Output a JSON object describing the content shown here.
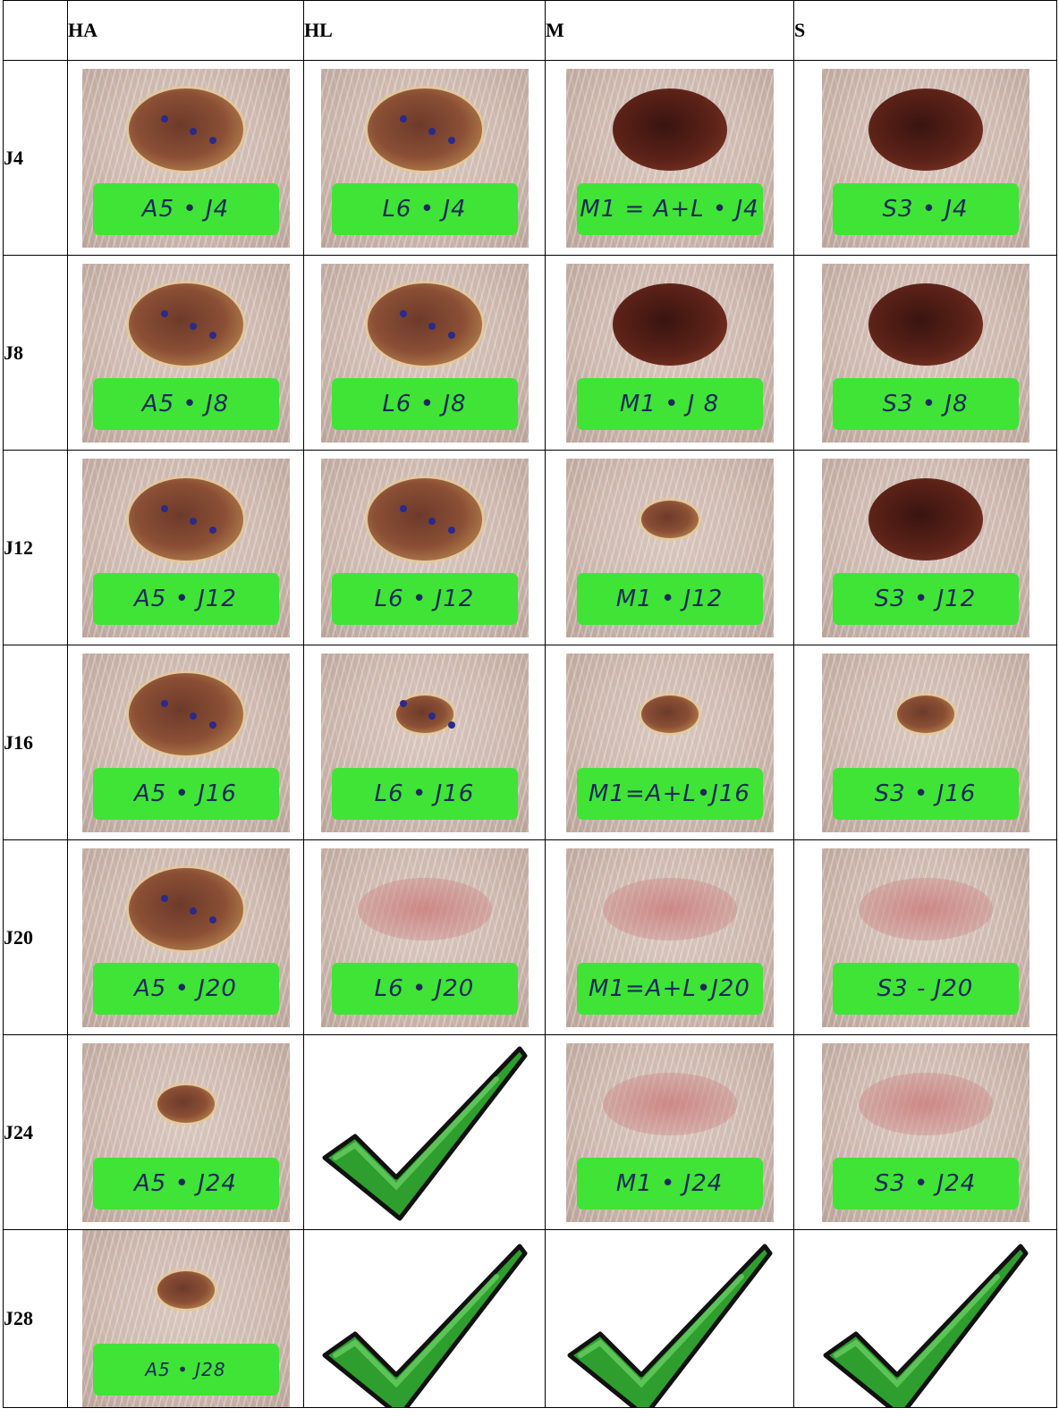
{
  "columns": [
    "",
    "HA",
    "HL",
    "M",
    "S"
  ],
  "rows": [
    {
      "label": "J4",
      "cells": [
        {
          "type": "photo",
          "tag": "A5 • J4"
        },
        {
          "type": "photo",
          "tag": "L6 • J4"
        },
        {
          "type": "photo",
          "tag": "M1 = A+L • J4"
        },
        {
          "type": "photo",
          "tag": "S3 • J4"
        }
      ]
    },
    {
      "label": "J8",
      "cells": [
        {
          "type": "photo",
          "tag": "A5 • J8"
        },
        {
          "type": "photo",
          "tag": "L6 • J8"
        },
        {
          "type": "photo",
          "tag": "M1 • J 8"
        },
        {
          "type": "photo",
          "tag": "S3 • J8"
        }
      ]
    },
    {
      "label": "J12",
      "cells": [
        {
          "type": "photo",
          "tag": "A5 • J12"
        },
        {
          "type": "photo",
          "tag": "L6 • J12"
        },
        {
          "type": "photo",
          "tag": "M1 • J12"
        },
        {
          "type": "photo",
          "tag": "S3 • J12"
        }
      ]
    },
    {
      "label": "J16",
      "cells": [
        {
          "type": "photo",
          "tag": "A5 • J16"
        },
        {
          "type": "photo",
          "tag": "L6 • J16"
        },
        {
          "type": "photo",
          "tag": "M1=A+L•J16"
        },
        {
          "type": "photo",
          "tag": "S3 • J16"
        }
      ]
    },
    {
      "label": "J20",
      "cells": [
        {
          "type": "photo",
          "tag": "A5 • J20"
        },
        {
          "type": "photo",
          "tag": "L6 • J20"
        },
        {
          "type": "photo",
          "tag": "M1=A+L•J20"
        },
        {
          "type": "photo",
          "tag": "S3 - J20"
        }
      ]
    },
    {
      "label": "J24",
      "cells": [
        {
          "type": "photo",
          "tag": "A5 • J24"
        },
        {
          "type": "check"
        },
        {
          "type": "photo",
          "tag": "M1 • J24"
        },
        {
          "type": "photo",
          "tag": "S3 • J24"
        }
      ]
    },
    {
      "label": "J28",
      "cells": [
        {
          "type": "photo",
          "tag": "A5 • J28"
        },
        {
          "type": "check"
        },
        {
          "type": "check"
        },
        {
          "type": "check"
        }
      ]
    }
  ],
  "colors": {
    "tag_green": "#3fe436",
    "check_green": "#2e9e2e",
    "border": "#000000"
  }
}
